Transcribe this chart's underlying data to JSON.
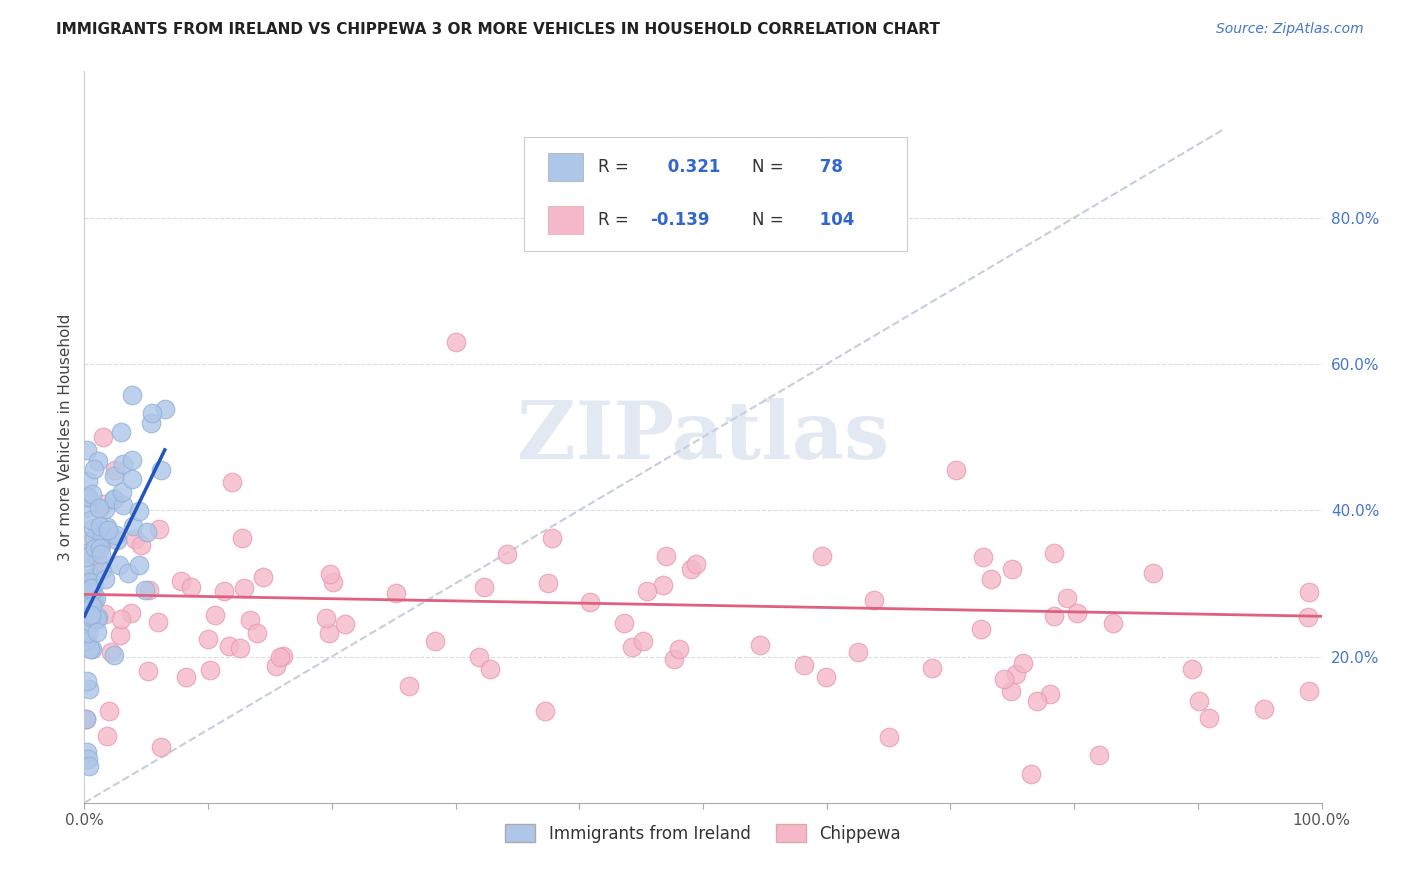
{
  "title": "IMMIGRANTS FROM IRELAND VS CHIPPEWA 3 OR MORE VEHICLES IN HOUSEHOLD CORRELATION CHART",
  "source": "Source: ZipAtlas.com",
  "ylabel": "3 or more Vehicles in Household",
  "legend_bottom": [
    "Immigrants from Ireland",
    "Chippewa"
  ],
  "r_ireland": 0.321,
  "n_ireland": 78,
  "r_chippewa": -0.139,
  "n_chippewa": 104,
  "xmin": 0.0,
  "xmax": 1.0,
  "ymin": 0.0,
  "ymax": 1.0,
  "x_tick_labels": [
    "0.0%",
    "",
    "",
    "",
    "",
    "",
    "",
    "",
    "",
    "",
    "100.0%"
  ],
  "y_tick_labels_right": [
    "20.0%",
    "40.0%",
    "60.0%",
    "80.0%"
  ],
  "ireland_color": "#aec6e8",
  "chippewa_color": "#f4b8c8",
  "ireland_edge_color": "#90b0d8",
  "chippewa_edge_color": "#e898b0",
  "ireland_trend_color": "#2255bb",
  "chippewa_trend_color": "#e06080",
  "diag_color": "#c0c8d8",
  "background_color": "#ffffff",
  "title_color": "#222222",
  "source_color": "#4477cc",
  "legend_text_color": "#3366cc",
  "grid_color": "#dddddd",
  "watermark_color": "#c8d4e8"
}
